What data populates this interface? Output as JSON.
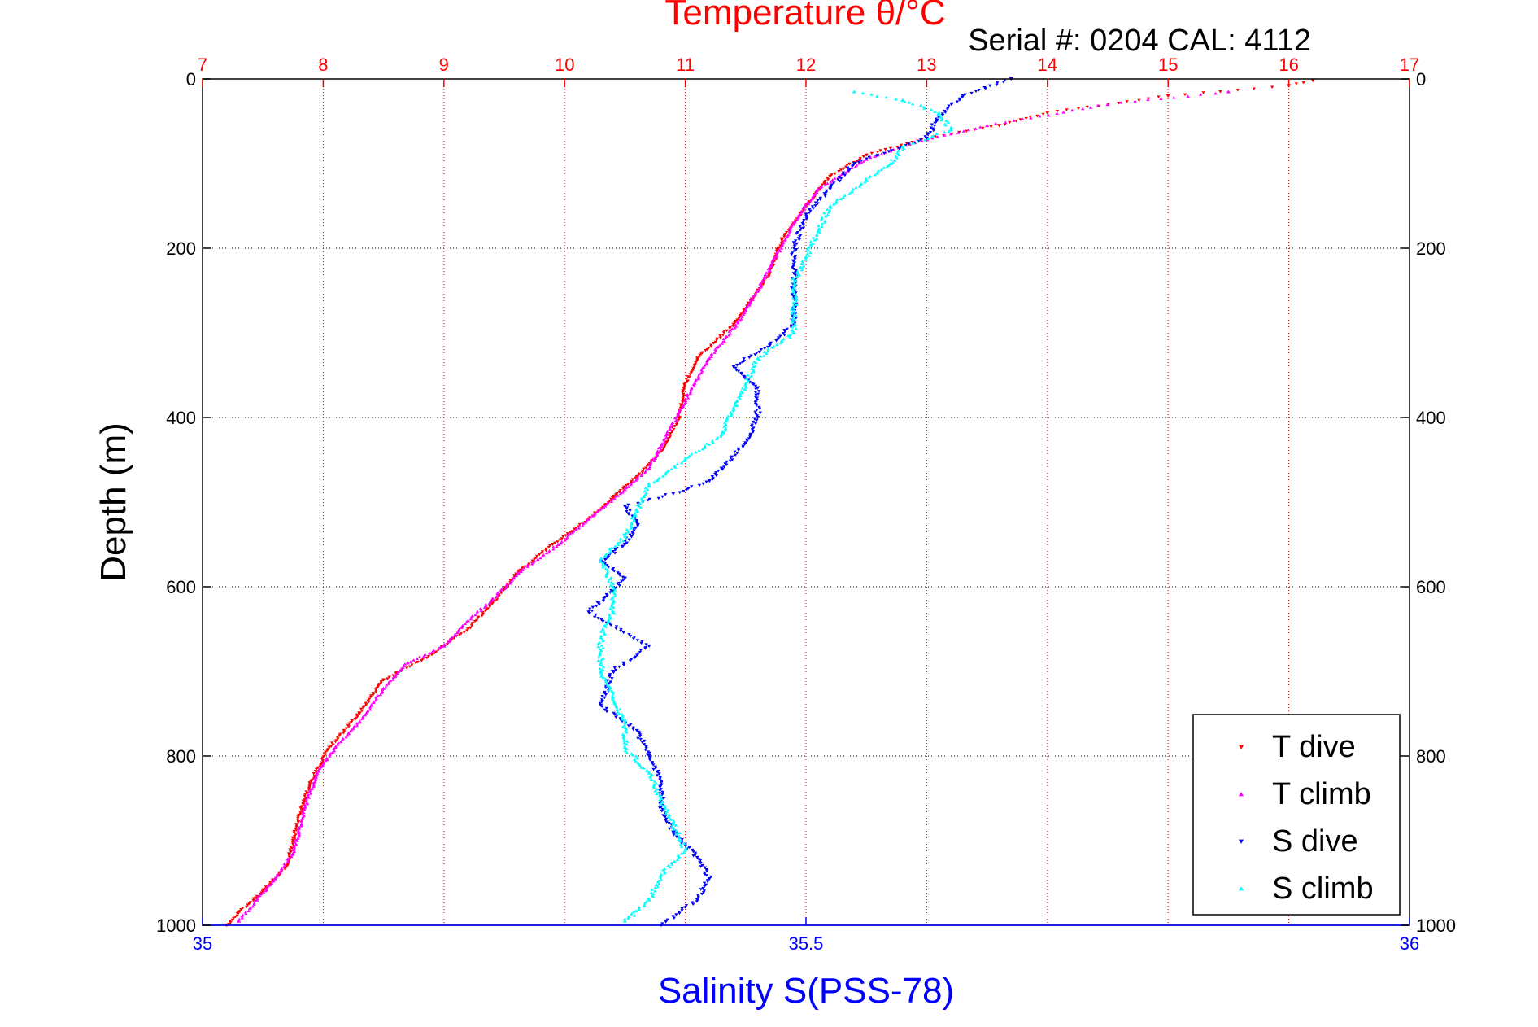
{
  "chart_data": {
    "type": "scatter",
    "title": "Temperature θ/°C",
    "subtitle": "Serial #: 0204  CAL: 4112",
    "ylabel": "Depth (m)",
    "xlabel": "Salinity S(PSS-78)",
    "y_axis": {
      "range": [
        0,
        1000
      ],
      "reversed": true,
      "ticks": [
        "0",
        "200",
        "400",
        "600",
        "800",
        "1000"
      ]
    },
    "x_top_axis": {
      "quantity": "temperature",
      "range": [
        7,
        17
      ],
      "ticks": [
        "7",
        "8",
        "9",
        "10",
        "11",
        "12",
        "13",
        "14",
        "15",
        "16",
        "17"
      ]
    },
    "x_bottom_axis": {
      "quantity": "salinity",
      "range": [
        35,
        36
      ],
      "ticks": [
        "35",
        "35.5",
        "36"
      ]
    },
    "grid": true,
    "legend_position": "bottom-right",
    "series": [
      {
        "name": "T dive",
        "axis": "temperature",
        "color": "#ff0000",
        "marker": "triangle-down",
        "points": [
          [
            16.2,
            2
          ],
          [
            16.0,
            8
          ],
          [
            15.0,
            20
          ],
          [
            14.0,
            40
          ],
          [
            13.6,
            55
          ],
          [
            13.0,
            70
          ],
          [
            12.5,
            90
          ],
          [
            12.2,
            115
          ],
          [
            12.0,
            150
          ],
          [
            11.8,
            190
          ],
          [
            11.7,
            230
          ],
          [
            11.55,
            260
          ],
          [
            11.4,
            290
          ],
          [
            11.1,
            330
          ],
          [
            11.0,
            360
          ],
          [
            10.95,
            400
          ],
          [
            10.8,
            440
          ],
          [
            10.6,
            470
          ],
          [
            10.4,
            495
          ],
          [
            10.2,
            520
          ],
          [
            9.9,
            550
          ],
          [
            9.6,
            585
          ],
          [
            9.4,
            620
          ],
          [
            9.2,
            650
          ],
          [
            8.9,
            680
          ],
          [
            8.5,
            710
          ],
          [
            8.3,
            750
          ],
          [
            8.05,
            790
          ],
          [
            7.9,
            830
          ],
          [
            7.8,
            870
          ],
          [
            7.75,
            900
          ],
          [
            7.7,
            930
          ],
          [
            7.5,
            960
          ],
          [
            7.3,
            985
          ],
          [
            7.2,
            1000
          ]
        ]
      },
      {
        "name": "T climb",
        "axis": "temperature",
        "color": "#ff00ff",
        "marker": "triangle-up",
        "points": [
          [
            15.5,
            15
          ],
          [
            14.5,
            30
          ],
          [
            13.5,
            55
          ],
          [
            12.9,
            75
          ],
          [
            12.5,
            95
          ],
          [
            12.1,
            130
          ],
          [
            11.9,
            170
          ],
          [
            11.75,
            210
          ],
          [
            11.6,
            250
          ],
          [
            11.45,
            285
          ],
          [
            11.2,
            330
          ],
          [
            11.0,
            380
          ],
          [
            10.85,
            420
          ],
          [
            10.7,
            460
          ],
          [
            10.5,
            485
          ],
          [
            10.2,
            520
          ],
          [
            9.95,
            550
          ],
          [
            9.65,
            580
          ],
          [
            9.4,
            615
          ],
          [
            9.2,
            640
          ],
          [
            9.0,
            670
          ],
          [
            8.7,
            690
          ],
          [
            8.5,
            720
          ],
          [
            8.3,
            760
          ],
          [
            8.1,
            790
          ],
          [
            7.95,
            820
          ],
          [
            7.85,
            860
          ],
          [
            7.8,
            890
          ],
          [
            7.75,
            915
          ],
          [
            7.6,
            945
          ],
          [
            7.45,
            970
          ],
          [
            7.3,
            995
          ]
        ]
      },
      {
        "name": "S dive",
        "axis": "salinity",
        "color": "#0000ff",
        "marker": "triangle-down",
        "points": [
          [
            35.67,
            0
          ],
          [
            35.63,
            20
          ],
          [
            35.61,
            45
          ],
          [
            35.6,
            70
          ],
          [
            35.54,
            100
          ],
          [
            35.52,
            130
          ],
          [
            35.5,
            160
          ],
          [
            35.49,
            200
          ],
          [
            35.49,
            230
          ],
          [
            35.49,
            260
          ],
          [
            35.49,
            290
          ],
          [
            35.47,
            315
          ],
          [
            35.44,
            340
          ],
          [
            35.46,
            365
          ],
          [
            35.46,
            400
          ],
          [
            35.45,
            430
          ],
          [
            35.43,
            460
          ],
          [
            35.42,
            475
          ],
          [
            35.39,
            490
          ],
          [
            35.35,
            505
          ],
          [
            35.36,
            525
          ],
          [
            35.35,
            550
          ],
          [
            35.33,
            570
          ],
          [
            35.35,
            590
          ],
          [
            35.32,
            630
          ],
          [
            35.37,
            670
          ],
          [
            35.34,
            700
          ],
          [
            35.33,
            740
          ],
          [
            35.36,
            770
          ],
          [
            35.37,
            800
          ],
          [
            35.38,
            830
          ],
          [
            35.38,
            860
          ],
          [
            35.39,
            890
          ],
          [
            35.41,
            920
          ],
          [
            35.42,
            945
          ],
          [
            35.41,
            970
          ],
          [
            35.38,
            1000
          ]
        ]
      },
      {
        "name": "S climb",
        "axis": "salinity",
        "color": "#00ffff",
        "marker": "triangle-up",
        "points": [
          [
            35.54,
            15
          ],
          [
            35.58,
            25
          ],
          [
            35.61,
            40
          ],
          [
            35.62,
            60
          ],
          [
            35.58,
            80
          ],
          [
            35.57,
            100
          ],
          [
            35.55,
            120
          ],
          [
            35.52,
            150
          ],
          [
            35.51,
            180
          ],
          [
            35.5,
            210
          ],
          [
            35.49,
            240
          ],
          [
            35.49,
            270
          ],
          [
            35.49,
            300
          ],
          [
            35.46,
            330
          ],
          [
            35.45,
            360
          ],
          [
            35.44,
            390
          ],
          [
            35.43,
            420
          ],
          [
            35.4,
            450
          ],
          [
            35.37,
            480
          ],
          [
            35.36,
            510
          ],
          [
            35.35,
            540
          ],
          [
            35.33,
            570
          ],
          [
            35.34,
            600
          ],
          [
            35.34,
            630
          ],
          [
            35.33,
            660
          ],
          [
            35.33,
            700
          ],
          [
            35.34,
            730
          ],
          [
            35.35,
            760
          ],
          [
            35.35,
            790
          ],
          [
            35.37,
            820
          ],
          [
            35.38,
            850
          ],
          [
            35.39,
            880
          ],
          [
            35.4,
            910
          ],
          [
            35.38,
            940
          ],
          [
            35.37,
            970
          ],
          [
            35.35,
            995
          ]
        ]
      }
    ]
  },
  "legend": {
    "items": [
      {
        "label": "T dive",
        "color": "#ff0000"
      },
      {
        "label": "T climb",
        "color": "#ff00ff"
      },
      {
        "label": "S dive",
        "color": "#0000ff"
      },
      {
        "label": "S climb",
        "color": "#00ffff"
      }
    ]
  }
}
